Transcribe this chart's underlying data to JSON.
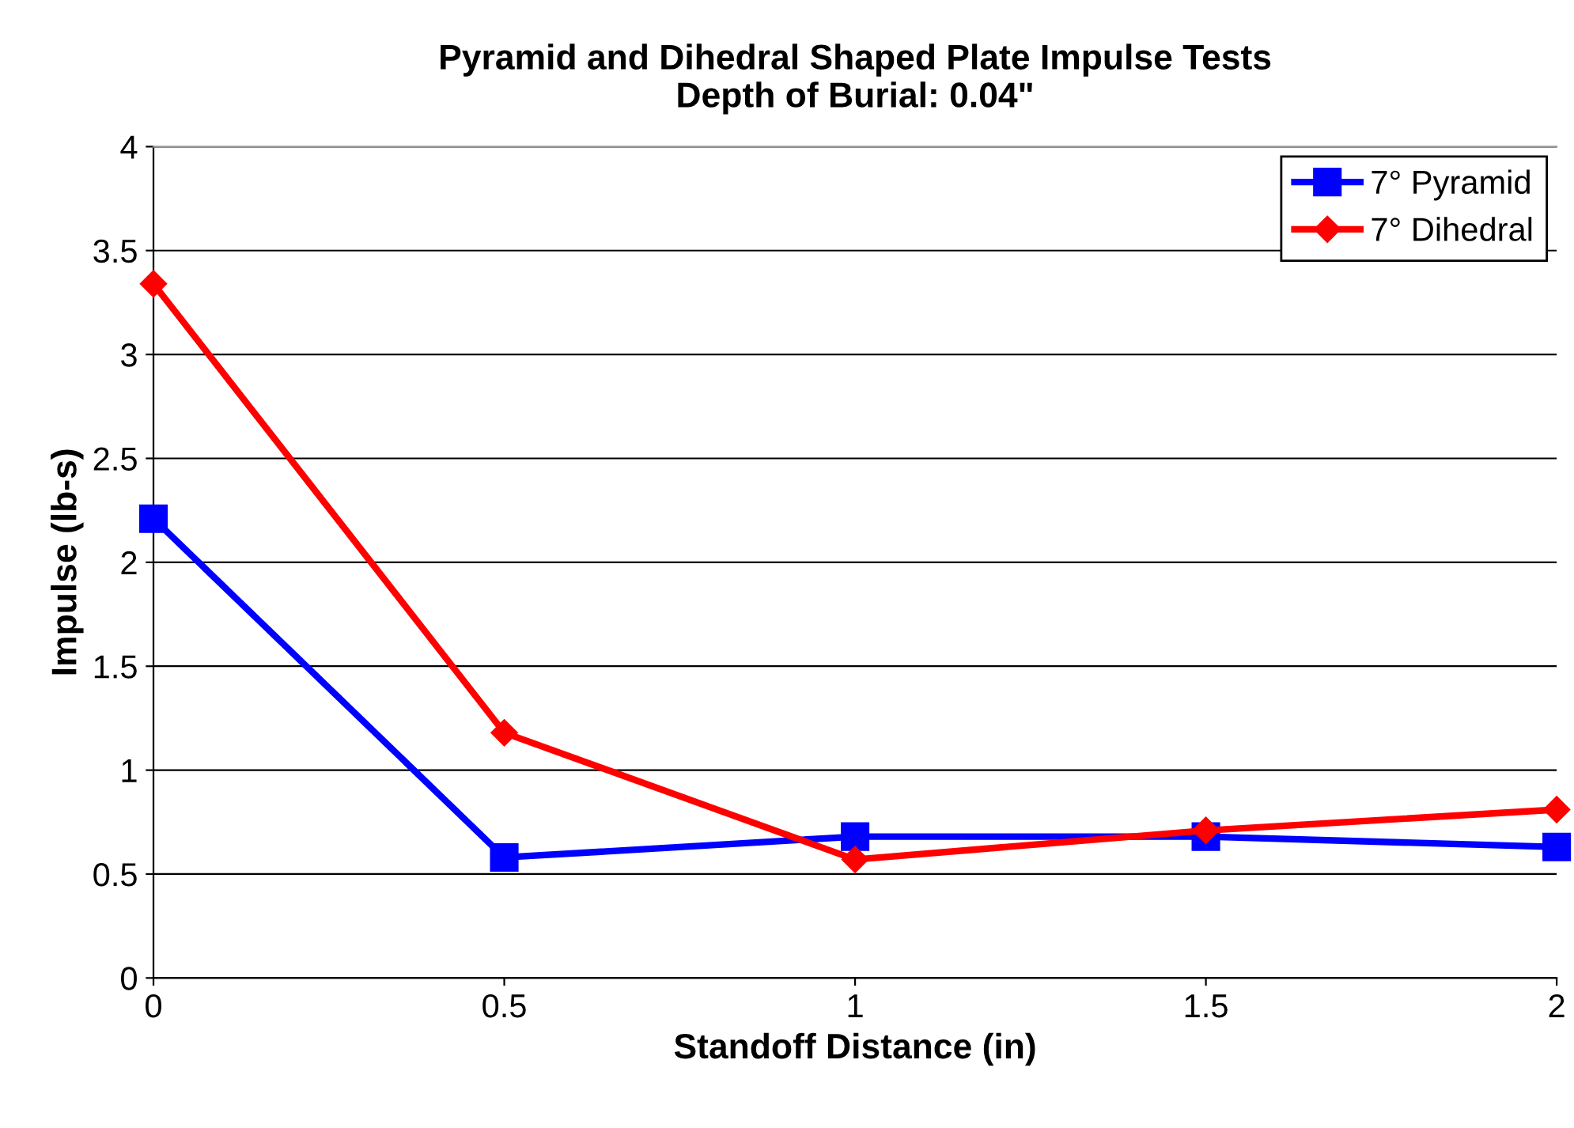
{
  "chart_data": {
    "type": "line",
    "title": "Pyramid and Dihedral Shaped Plate Impulse Tests\nDepth of Burial: 0.04\"",
    "xlabel": "Standoff Distance (in)",
    "ylabel": "Impulse (lb-s)",
    "x": [
      0,
      0.5,
      1,
      1.5,
      2
    ],
    "series": [
      {
        "name": "7° Pyramid",
        "color": "#0000ff",
        "marker": "square",
        "values": [
          2.21,
          0.58,
          0.68,
          0.68,
          0.63
        ]
      },
      {
        "name": "7° Dihedral",
        "color": "#ff0000",
        "marker": "diamond",
        "values": [
          3.34,
          1.18,
          0.57,
          0.71,
          0.81
        ]
      }
    ],
    "xlim": [
      0,
      2
    ],
    "xticks": [
      0,
      0.5,
      1,
      1.5,
      2
    ],
    "ylim": [
      0,
      4
    ],
    "yticks": [
      0,
      0.5,
      1,
      1.5,
      2,
      2.5,
      3,
      3.5,
      4
    ],
    "grid": "y",
    "legend": "top right",
    "line_style": "solid"
  }
}
